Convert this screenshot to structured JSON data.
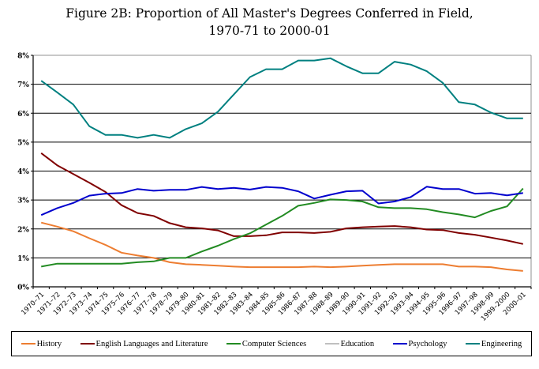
{
  "title": {
    "line1": "Figure 2B: Proportion of All Master's Degrees Conferred in Field,",
    "line2": "1970-71 to 2000-01"
  },
  "chart_data": {
    "type": "line",
    "title": "Figure 2B: Proportion of All Master's Degrees Conferred in Field, 1970-71 to 2000-01",
    "xlabel": "",
    "ylabel": "",
    "ylim": [
      0,
      8
    ],
    "yticks": [
      "0%",
      "1%",
      "2%",
      "3%",
      "4%",
      "5%",
      "6%",
      "7%",
      "8%"
    ],
    "grid": true,
    "legend_position": "bottom",
    "categories": [
      "1970–71",
      "1971–72",
      "1972–73",
      "1973–74",
      "1974–75",
      "1975–76",
      "1976–77",
      "1977–78",
      "1978–79",
      "1979–80",
      "1980–81",
      "1981–82",
      "1982–83",
      "1983–84",
      "1984–85",
      "1985–86",
      "1986–87",
      "1987–88",
      "1988–89",
      "1989–90",
      "1990–91",
      "1991–92",
      "1992–93",
      "1993–94",
      "1994–95",
      "1995–96",
      "1996–97",
      "1997–98",
      "1998–99",
      "1999–2000",
      "2000–01"
    ],
    "series": [
      {
        "name": "History",
        "color": "#ed7d31",
        "values": [
          2.22,
          2.08,
          1.92,
          1.68,
          1.45,
          1.18,
          1.08,
          1.0,
          0.85,
          0.78,
          0.76,
          0.73,
          0.7,
          0.68,
          0.68,
          0.68,
          0.68,
          0.7,
          0.68,
          0.7,
          0.73,
          0.76,
          0.78,
          0.78,
          0.78,
          0.78,
          0.7,
          0.7,
          0.68,
          0.6,
          0.55
        ]
      },
      {
        "name": "English Languages and Literature",
        "color": "#800000",
        "values": [
          4.62,
          4.2,
          3.9,
          3.6,
          3.28,
          2.82,
          2.55,
          2.45,
          2.2,
          2.06,
          2.02,
          1.95,
          1.75,
          1.75,
          1.78,
          1.88,
          1.88,
          1.86,
          1.9,
          2.02,
          2.06,
          2.08,
          2.1,
          2.06,
          1.98,
          1.96,
          1.86,
          1.8,
          1.7,
          1.6,
          1.48
        ]
      },
      {
        "name": "Computer Sciences",
        "color": "#228b22",
        "values": [
          0.7,
          0.8,
          0.8,
          0.8,
          0.8,
          0.8,
          0.85,
          0.88,
          1.0,
          1.0,
          1.22,
          1.42,
          1.65,
          1.85,
          2.15,
          2.45,
          2.8,
          2.9,
          3.02,
          3.0,
          2.95,
          2.75,
          2.72,
          2.72,
          2.68,
          2.58,
          2.5,
          2.4,
          2.62,
          2.78,
          3.4
        ]
      },
      {
        "name": "Education",
        "color": "#c0c0c0",
        "values": []
      },
      {
        "name": "Psychology",
        "color": "#0000cd",
        "values": [
          2.48,
          2.72,
          2.9,
          3.15,
          3.22,
          3.24,
          3.38,
          3.32,
          3.35,
          3.35,
          3.45,
          3.38,
          3.42,
          3.36,
          3.45,
          3.42,
          3.3,
          3.05,
          3.18,
          3.3,
          3.32,
          2.88,
          2.95,
          3.1,
          3.46,
          3.38,
          3.38,
          3.22,
          3.24,
          3.16,
          3.24
        ]
      },
      {
        "name": "Engineering",
        "color": "#008080",
        "values": [
          7.12,
          6.72,
          6.3,
          5.55,
          5.25,
          5.25,
          5.15,
          5.25,
          5.15,
          5.45,
          5.65,
          6.05,
          6.65,
          7.25,
          7.52,
          7.52,
          7.82,
          7.82,
          7.9,
          7.62,
          7.38,
          7.38,
          7.78,
          7.68,
          7.45,
          7.05,
          6.38,
          6.3,
          6.02,
          5.82,
          5.82
        ]
      }
    ]
  },
  "legend": {
    "items": [
      {
        "label": "History",
        "color": "#ed7d31"
      },
      {
        "label": "English Languages and Literature",
        "color": "#800000"
      },
      {
        "label": "Computer Sciences",
        "color": "#228b22"
      },
      {
        "label": "Education",
        "color": "#c0c0c0"
      },
      {
        "label": "Psychology",
        "color": "#0000cd"
      },
      {
        "label": "Engineering",
        "color": "#008080"
      }
    ]
  }
}
